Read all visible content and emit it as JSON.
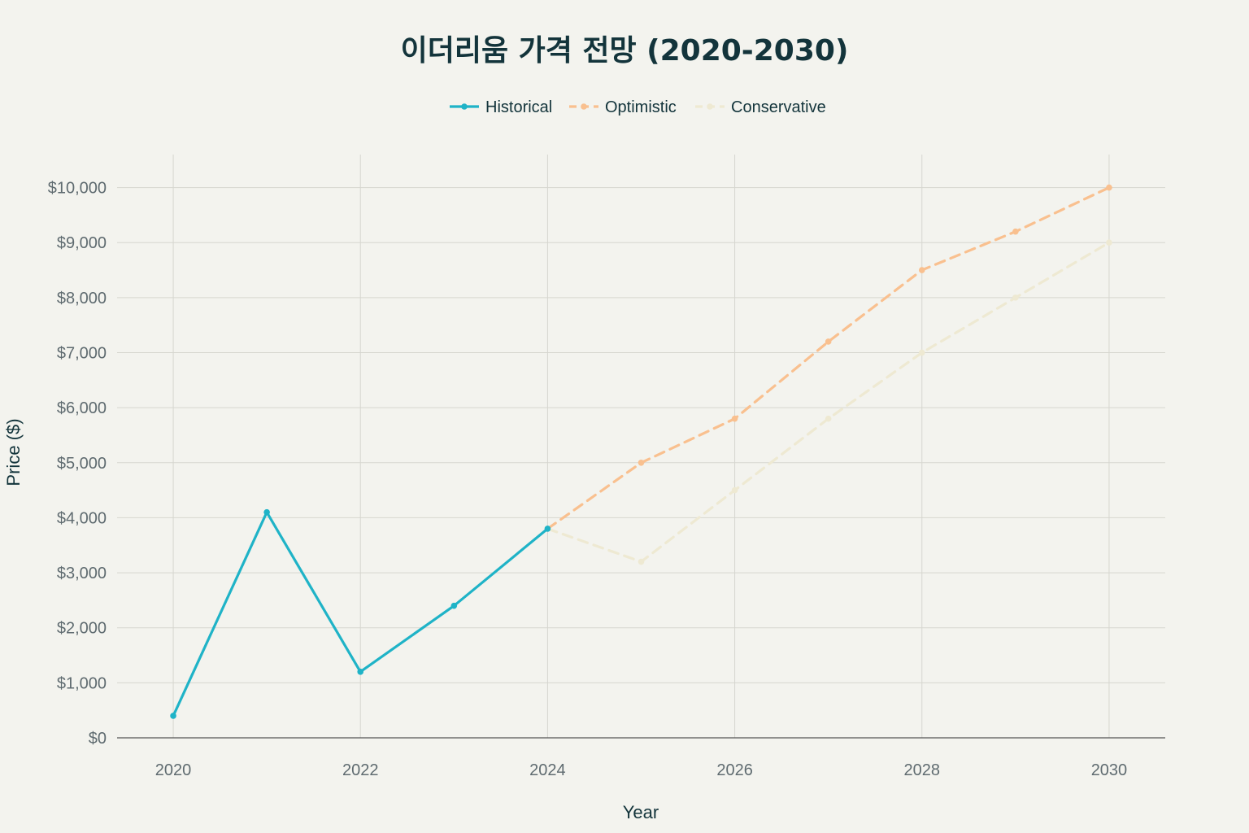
{
  "chart_data": {
    "type": "line",
    "title": "이더리움 가격 전망 (2020-2030)",
    "xlabel": "Year",
    "ylabel": "Price ($)",
    "xlim": [
      2019.4,
      2030.6
    ],
    "ylim": [
      0,
      10600
    ],
    "x_ticks": [
      2020,
      2022,
      2024,
      2026,
      2028,
      2030
    ],
    "y_ticks": [
      0,
      1000,
      2000,
      3000,
      4000,
      5000,
      6000,
      7000,
      8000,
      9000,
      10000
    ],
    "y_tick_labels": [
      "$0",
      "$1,000",
      "$2,000",
      "$3,000",
      "$4,000",
      "$5,000",
      "$6,000",
      "$7,000",
      "$8,000",
      "$9,000",
      "$10,000"
    ],
    "grid": true,
    "legend_position": "top-center",
    "series": [
      {
        "name": "Historical",
        "color": "#1fb3c7",
        "dash": "solid",
        "points": [
          [
            2020,
            400
          ],
          [
            2021,
            4100
          ],
          [
            2022,
            1200
          ],
          [
            2023,
            2400
          ],
          [
            2024,
            3800
          ]
        ]
      },
      {
        "name": "Optimistic",
        "color": "#f9c08f",
        "dash": "dashed",
        "points": [
          [
            2024,
            3800
          ],
          [
            2025,
            5000
          ],
          [
            2026,
            5800
          ],
          [
            2027,
            7200
          ],
          [
            2028,
            8500
          ],
          [
            2029,
            9200
          ],
          [
            2030,
            10000
          ]
        ]
      },
      {
        "name": "Conservative",
        "color": "#eee9d2",
        "dash": "dashed",
        "points": [
          [
            2024,
            3800
          ],
          [
            2025,
            3200
          ],
          [
            2026,
            4500
          ],
          [
            2027,
            5800
          ],
          [
            2028,
            7000
          ],
          [
            2029,
            8000
          ],
          [
            2030,
            9000
          ]
        ]
      }
    ]
  }
}
